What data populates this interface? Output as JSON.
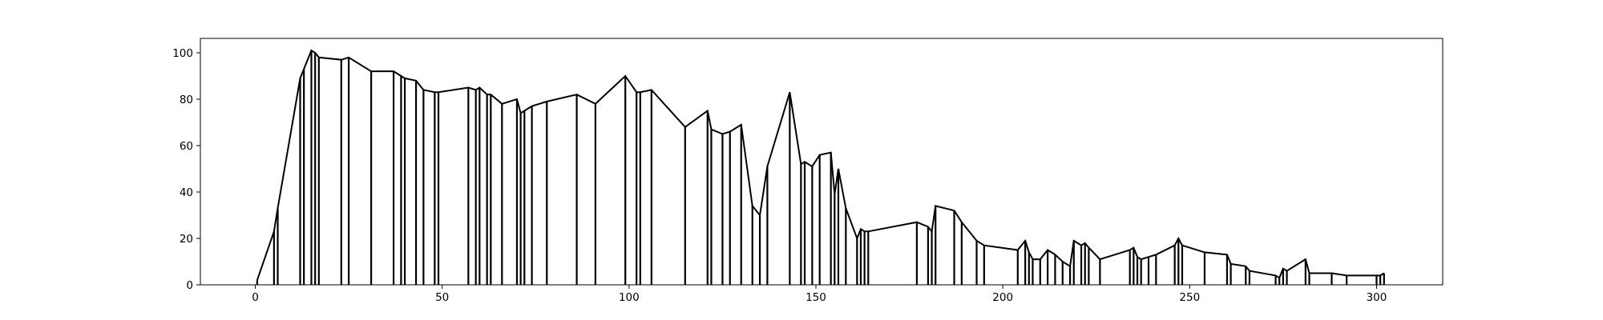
{
  "chart_data": {
    "type": "line",
    "title": "",
    "xlabel": "",
    "ylabel": "",
    "xlim": [
      -14.7,
      317.7
    ],
    "ylim": [
      0,
      106.2
    ],
    "grid": false,
    "legend": "none",
    "x_ticks": [
      0,
      50,
      100,
      150,
      200,
      250,
      300
    ],
    "y_ticks": [
      0,
      20,
      40,
      60,
      80,
      100
    ],
    "series_color": "#000000",
    "series": [
      {
        "x": [
          0.5,
          5,
          6,
          12,
          13,
          15,
          16,
          17,
          23,
          25,
          31,
          37,
          39,
          40,
          43,
          45,
          48,
          49,
          57,
          59,
          60,
          62,
          63,
          66,
          70,
          71,
          72,
          74,
          78,
          86,
          91,
          99,
          102,
          103,
          106,
          115,
          121,
          122,
          125,
          127,
          130,
          133,
          135,
          137,
          143,
          146,
          147,
          149,
          151,
          154,
          155,
          156,
          158,
          161,
          162,
          163,
          164,
          177,
          180,
          181,
          182,
          187,
          189,
          193,
          195,
          204,
          206,
          207,
          208,
          210,
          212,
          214,
          216,
          218,
          219,
          221,
          222,
          223,
          226,
          234,
          235,
          236,
          237,
          239,
          241,
          246,
          247,
          248,
          254,
          260,
          261,
          265,
          266,
          273,
          274,
          275,
          276,
          281,
          282,
          288,
          292,
          300,
          301,
          302
        ],
        "y": [
          2,
          23,
          33,
          89,
          93,
          101,
          100,
          98,
          97,
          98,
          92,
          92,
          90,
          89,
          88,
          84,
          83,
          83,
          85,
          84,
          85,
          82,
          82,
          78,
          80,
          74,
          75,
          77,
          79,
          82,
          78,
          90,
          83,
          83,
          84,
          68,
          75,
          67,
          65,
          66,
          69,
          34,
          30,
          51,
          83,
          52,
          53,
          51,
          56,
          57,
          39,
          50,
          33,
          20,
          24,
          23,
          23,
          27,
          25,
          23,
          34,
          32,
          27,
          19,
          17,
          15,
          19,
          14,
          11,
          11,
          15,
          13,
          10,
          8,
          19,
          17,
          18,
          16,
          11,
          15,
          16,
          12,
          11,
          12,
          13,
          17,
          20,
          17,
          14,
          13,
          9,
          8,
          6,
          4,
          3,
          7,
          6,
          11,
          5,
          5,
          4,
          4,
          4,
          5
        ]
      }
    ]
  }
}
